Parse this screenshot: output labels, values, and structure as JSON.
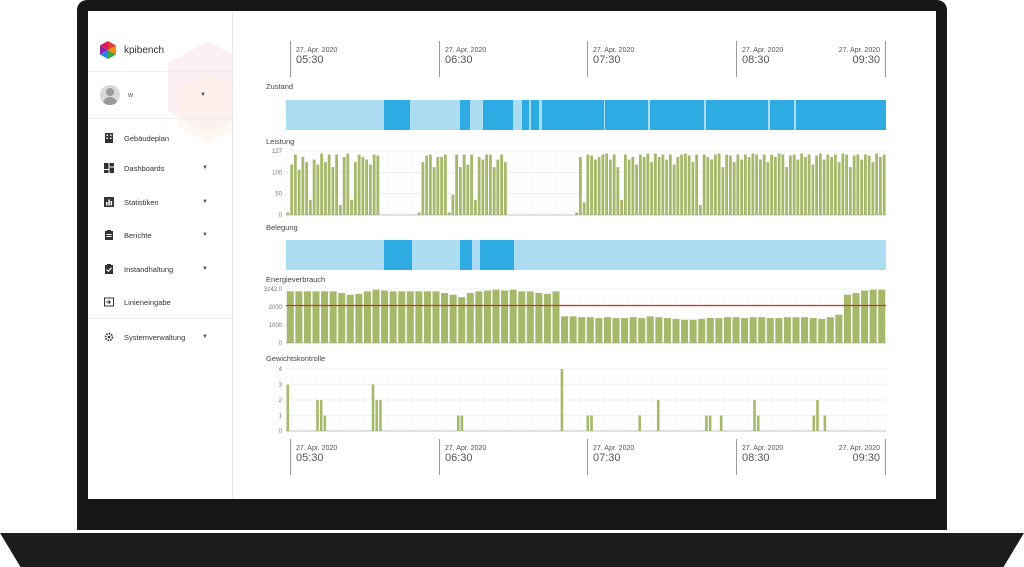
{
  "sidebar": {
    "brand": "kpibench",
    "user": "w",
    "items": [
      {
        "label": "Gebäudeplan",
        "icon": "building-icon",
        "has_caret": false
      },
      {
        "label": "Dashboards",
        "icon": "dashboard-icon",
        "has_caret": true
      },
      {
        "label": "Statistiken",
        "icon": "bar-chart-icon",
        "has_caret": true
      },
      {
        "label": "Berichte",
        "icon": "clipboard-icon",
        "has_caret": true
      },
      {
        "label": "Instandhaltung",
        "icon": "clipboard-check-icon",
        "has_caret": true
      },
      {
        "label": "Linieneingabe",
        "icon": "input-arrow-icon",
        "has_caret": false
      },
      {
        "label": "Systemverwaltung",
        "icon": "gear-icon",
        "has_caret": true
      }
    ]
  },
  "time_axis": {
    "ticks": [
      {
        "date": "27. Apr. 2020",
        "time": "05:30"
      },
      {
        "date": "27. Apr. 2020",
        "time": "06:30"
      },
      {
        "date": "27. Apr. 2020",
        "time": "07:30"
      },
      {
        "date": "27. Apr. 2020",
        "time": "08:30"
      },
      {
        "date": "27. Apr. 2020",
        "time": "09:30"
      }
    ]
  },
  "sections": {
    "zustand": "Zustand",
    "leistung": "Leistung",
    "belegung": "Belegung",
    "energie": "Energieverbrauch",
    "gewicht": "Gewichtskontrolle"
  },
  "colors": {
    "state_active": "#2eabe2",
    "state_inactive": "#acdcf2",
    "bar": "#a6b96b",
    "threshold": "#d93025"
  },
  "chart_data": [
    {
      "type": "bar",
      "title": "Leistung",
      "ylim": [
        0,
        127
      ],
      "yticks": [
        "127",
        "100",
        "50",
        "0"
      ],
      "values": [
        5,
        100,
        120,
        90,
        115,
        105,
        30,
        110,
        100,
        122,
        105,
        120,
        95,
        120,
        20,
        115,
        122,
        30,
        105,
        120,
        115,
        110,
        100,
        120,
        118,
        0,
        0,
        0,
        0,
        0,
        0,
        0,
        0,
        0,
        0,
        5,
        105,
        118,
        120,
        95,
        115,
        115,
        120,
        5,
        40,
        120,
        95,
        120,
        100,
        120,
        30,
        115,
        110,
        120,
        120,
        95,
        110,
        120,
        105,
        0,
        0,
        0,
        0,
        0,
        0,
        0,
        0,
        0,
        0,
        0,
        0,
        0,
        0,
        0,
        0,
        0,
        0,
        5,
        115,
        25,
        120,
        118,
        110,
        115,
        120,
        122,
        110,
        120,
        95,
        30,
        120,
        110,
        115,
        100,
        120,
        115,
        122,
        105,
        122,
        115,
        120,
        110,
        120,
        100,
        115,
        120,
        122,
        118,
        105,
        120,
        20,
        120,
        115,
        110,
        120,
        122,
        95,
        120,
        118,
        105,
        120,
        110,
        120,
        115,
        122,
        120,
        110,
        120,
        105,
        120,
        115,
        122,
        120,
        95,
        118,
        120,
        110,
        122,
        115,
        120,
        100,
        118,
        122,
        110,
        120,
        115,
        120,
        105,
        122,
        120,
        95,
        118,
        120,
        110,
        120,
        118,
        105,
        122,
        115,
        120
      ]
    },
    {
      "type": "bar",
      "title": "Energieverbrauch",
      "ylim": [
        0,
        3243
      ],
      "yticks": [
        "3243.0",
        "2000",
        "1000",
        "0"
      ],
      "threshold": 2250,
      "values": [
        3100,
        3100,
        3100,
        3100,
        3100,
        3100,
        3000,
        2900,
        2950,
        3100,
        3200,
        3150,
        3100,
        3100,
        3100,
        3100,
        3100,
        3100,
        3000,
        2900,
        2750,
        3000,
        3100,
        3150,
        3200,
        3150,
        3200,
        3100,
        3100,
        3000,
        2950,
        3100,
        1600,
        1600,
        1550,
        1550,
        1500,
        1550,
        1500,
        1500,
        1550,
        1500,
        1600,
        1550,
        1500,
        1450,
        1400,
        1400,
        1450,
        1500,
        1500,
        1550,
        1550,
        1500,
        1550,
        1550,
        1500,
        1500,
        1550,
        1550,
        1550,
        1500,
        1450,
        1550,
        1700,
        2900,
        3000,
        3150,
        3200,
        3200
      ]
    },
    {
      "type": "bar",
      "title": "Gewichtskontrolle",
      "ylim": [
        0,
        4
      ],
      "yticks": [
        "4",
        "3",
        "2",
        "1",
        "0"
      ],
      "values": [
        3,
        0,
        0,
        0,
        0,
        0,
        0,
        0,
        2,
        2,
        1,
        0,
        0,
        0,
        0,
        0,
        0,
        0,
        0,
        0,
        0,
        0,
        0,
        3,
        2,
        2,
        0,
        0,
        0,
        0,
        0,
        0,
        0,
        0,
        0,
        0,
        0,
        0,
        0,
        0,
        0,
        0,
        0,
        0,
        0,
        0,
        1,
        1,
        0,
        0,
        0,
        0,
        0,
        0,
        0,
        0,
        0,
        0,
        0,
        0,
        0,
        0,
        0,
        0,
        0,
        0,
        0,
        0,
        0,
        0,
        0,
        0,
        0,
        0,
        4,
        0,
        0,
        0,
        0,
        0,
        0,
        1,
        1,
        0,
        0,
        0,
        0,
        0,
        0,
        0,
        0,
        0,
        0,
        0,
        0,
        1,
        0,
        0,
        0,
        0,
        2,
        0,
        0,
        0,
        0,
        0,
        0,
        0,
        0,
        0,
        0,
        0,
        0,
        1,
        1,
        0,
        0,
        1,
        0,
        0,
        0,
        0,
        0,
        0,
        0,
        0,
        2,
        1,
        0,
        0,
        0,
        0,
        0,
        0,
        0,
        0,
        0,
        0,
        0,
        0,
        0,
        0,
        1,
        2,
        0,
        1,
        0,
        0,
        0,
        0,
        0,
        0,
        0,
        0,
        0,
        0,
        0,
        0,
        0,
        0,
        0,
        0
      ]
    }
  ]
}
